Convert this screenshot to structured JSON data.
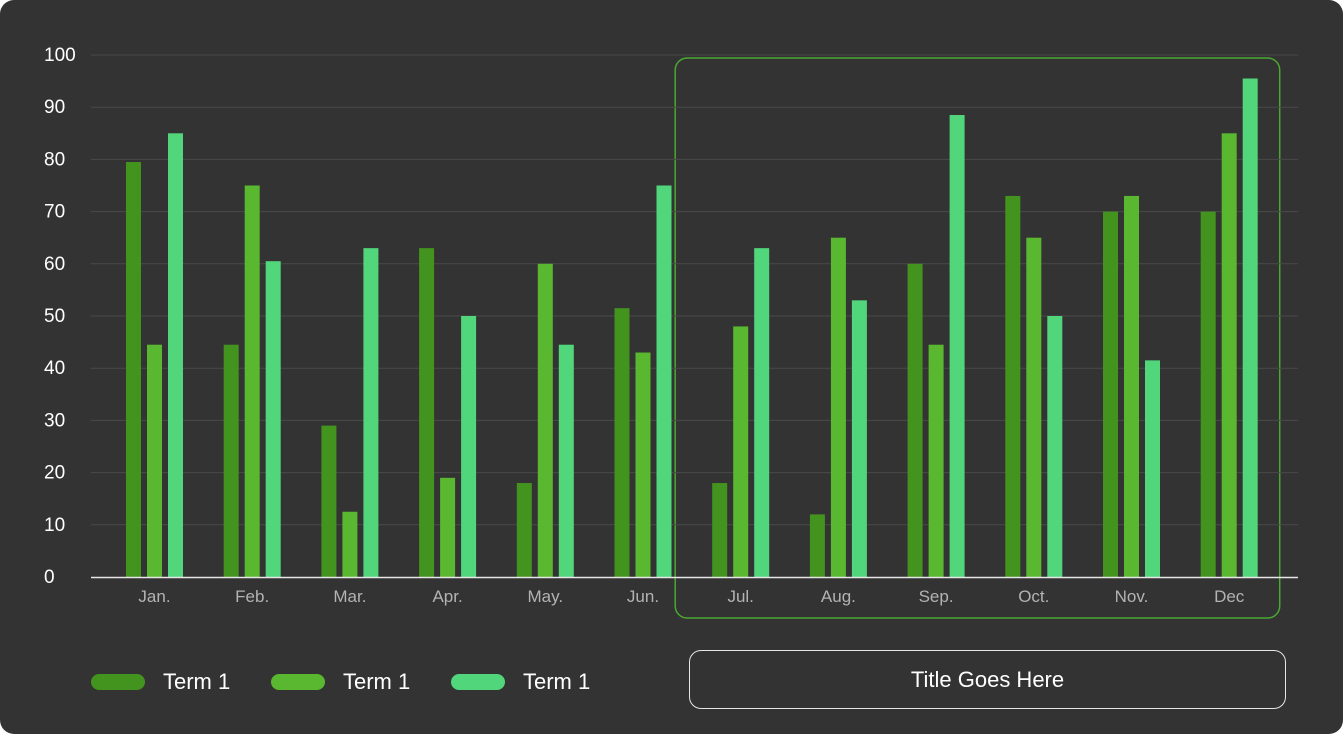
{
  "chart_data": {
    "type": "bar",
    "categories": [
      "Jan.",
      "Feb.",
      "Mar.",
      "Apr.",
      "May.",
      "Jun.",
      "Jul.",
      "Aug.",
      "Sep.",
      "Oct.",
      "Nov.",
      "Dec"
    ],
    "series": [
      {
        "name": "Term 1",
        "color": "#43931f",
        "values": [
          79.5,
          44.5,
          29,
          63,
          18,
          51.5,
          18,
          12,
          60,
          73,
          70,
          70
        ]
      },
      {
        "name": "Term 1",
        "color": "#59b82f",
        "values": [
          44.5,
          75,
          12.5,
          19,
          60,
          43,
          48,
          65,
          44.5,
          65,
          73,
          85
        ]
      },
      {
        "name": "Term 1",
        "color": "#52d67c",
        "values": [
          85,
          60.5,
          63,
          50,
          44.5,
          75,
          63,
          53,
          88.5,
          50,
          41.5,
          95.5
        ]
      }
    ],
    "yticks": [
      0,
      10,
      20,
      30,
      40,
      50,
      60,
      70,
      80,
      90,
      100
    ],
    "ylim": [
      0,
      100
    ],
    "grid": true,
    "highlight_range": [
      "Jul.",
      "Dec"
    ],
    "highlight_color": "#4aa832",
    "legend_position": "bottom-left",
    "title": "Title Goes Here"
  },
  "colors": {
    "background": "#333333",
    "grid": "#4a4a4a",
    "axis": "#e6e6e6",
    "tick_label": "#ffffff",
    "category_label": "#b3b3b3"
  }
}
